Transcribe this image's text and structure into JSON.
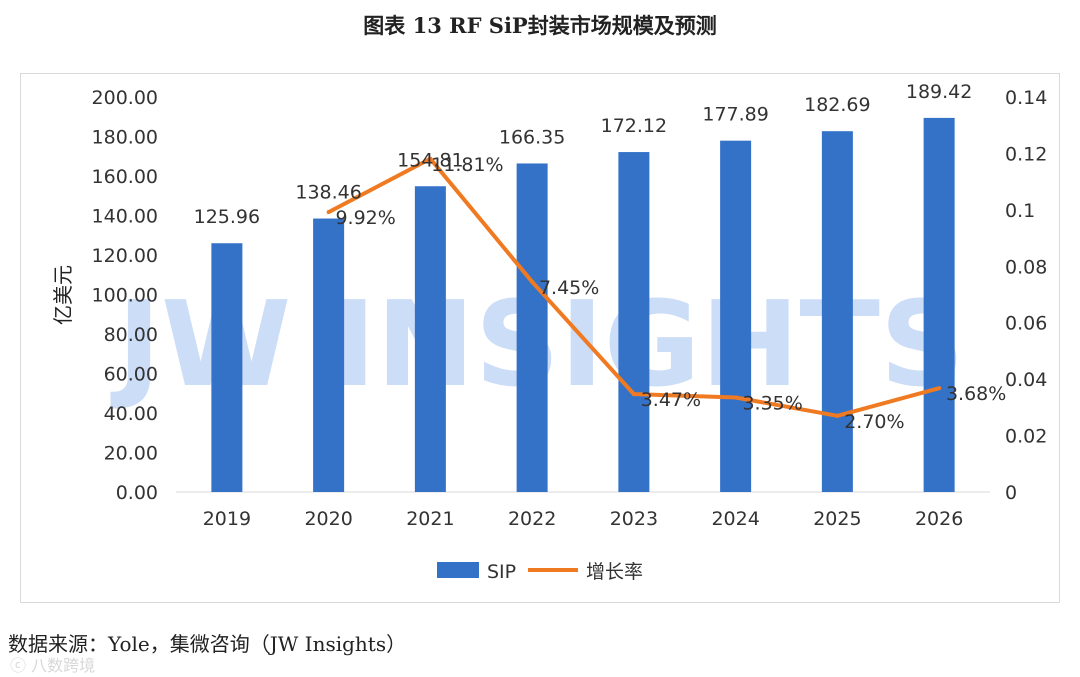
{
  "title": "图表 13 RF SiP封装市场规模及预测",
  "source_note": "数据来源：Yole，集微咨询（JW Insights）",
  "watermark": "JW INSIGHTS",
  "watermark_bottom": "ⓒ 八数跨境",
  "colors": {
    "bar": "#3472c8",
    "line": "#f07a22",
    "watermark": "#bcd2f5",
    "grid": "#d9d9d9",
    "text": "#333333"
  },
  "chart_data": {
    "type": "bar",
    "categories": [
      "2019",
      "2020",
      "2021",
      "2022",
      "2023",
      "2024",
      "2025",
      "2026"
    ],
    "series": [
      {
        "name": "SIP",
        "type": "bar",
        "axis": "left",
        "values": [
          125.96,
          138.46,
          154.81,
          166.35,
          172.12,
          177.89,
          182.69,
          189.42
        ],
        "labels": [
          "125.96",
          "138.46",
          "154.81",
          "166.35",
          "172.12",
          "177.89",
          "182.69",
          "189.42"
        ]
      },
      {
        "name": "增长率",
        "type": "line",
        "axis": "right",
        "values": [
          null,
          0.0992,
          0.1181,
          0.0745,
          0.0347,
          0.0335,
          0.027,
          0.0368
        ],
        "labels": [
          "",
          "9.92%",
          "11.81%",
          "7.45%",
          "3.47%",
          "3.35%",
          "2.70%",
          "3.68%"
        ]
      }
    ],
    "ylabel": "亿美元",
    "ylim": [
      0,
      200
    ],
    "yticks": [
      "0.00",
      "20.00",
      "40.00",
      "60.00",
      "80.00",
      "100.00",
      "120.00",
      "140.00",
      "160.00",
      "180.00",
      "200.00"
    ],
    "y2lim": [
      0,
      0.14
    ],
    "y2ticks": [
      "0",
      "0.02",
      "0.04",
      "0.06",
      "0.08",
      "0.1",
      "0.12",
      "0.14"
    ],
    "legend": [
      "SIP",
      "增长率"
    ],
    "legend_position": "bottom"
  }
}
